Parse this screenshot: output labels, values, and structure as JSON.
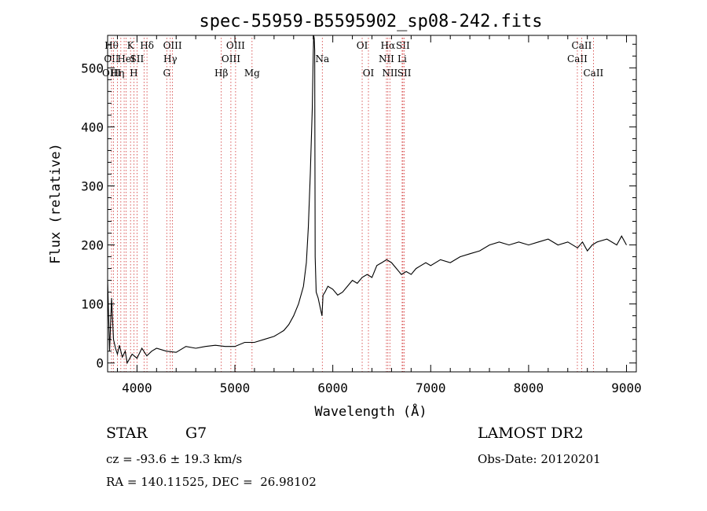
{
  "chart_data": {
    "type": "line",
    "title": "spec-55959-B5595902_sp08-242.fits",
    "xlabel": "Wavelength (Å)",
    "ylabel": "Flux (relative)",
    "xlim": [
      3700,
      9100
    ],
    "ylim": [
      -15,
      555
    ],
    "x_ticks": [
      4000,
      5000,
      6000,
      7000,
      8000,
      9000
    ],
    "y_ticks": [
      0,
      100,
      200,
      300,
      400,
      500
    ],
    "grid": false,
    "series": [
      {
        "x": [
          3700,
          3720,
          3740,
          3760,
          3780,
          3800,
          3820,
          3850,
          3880,
          3900,
          3950,
          4000,
          4050,
          4100,
          4150,
          4200,
          4300,
          4400,
          4500,
          4600,
          4700,
          4800,
          4900,
          5000,
          5100,
          5200,
          5300,
          5400,
          5450,
          5500,
          5550,
          5600,
          5650,
          5700,
          5730,
          5750,
          5770,
          5790,
          5800,
          5805,
          5810,
          5815,
          5820,
          5830,
          5850,
          5870,
          5890,
          5900,
          5920,
          5950,
          6000,
          6050,
          6100,
          6150,
          6200,
          6250,
          6300,
          6350,
          6400,
          6450,
          6500,
          6550,
          6600,
          6650,
          6700,
          6750,
          6800,
          6850,
          6900,
          6950,
          7000,
          7100,
          7200,
          7300,
          7400,
          7500,
          7600,
          7700,
          7800,
          7900,
          8000,
          8100,
          8200,
          8300,
          8400,
          8500,
          8550,
          8600,
          8650,
          8700,
          8800,
          8900,
          8950,
          9000
        ],
        "y": [
          140,
          20,
          110,
          40,
          25,
          15,
          30,
          10,
          20,
          0,
          15,
          8,
          25,
          12,
          20,
          25,
          20,
          18,
          28,
          25,
          28,
          30,
          28,
          28,
          35,
          35,
          40,
          45,
          50,
          55,
          65,
          80,
          100,
          130,
          170,
          230,
          320,
          430,
          520,
          555,
          550,
          530,
          180,
          120,
          110,
          95,
          80,
          115,
          120,
          130,
          125,
          115,
          120,
          130,
          140,
          135,
          145,
          150,
          145,
          165,
          170,
          175,
          170,
          160,
          150,
          155,
          150,
          160,
          165,
          170,
          165,
          175,
          170,
          180,
          185,
          190,
          200,
          205,
          200,
          205,
          200,
          205,
          210,
          200,
          205,
          195,
          205,
          190,
          200,
          205,
          210,
          200,
          215,
          200
        ]
      }
    ],
    "lines": [
      {
        "x": 3740,
        "top": "Hθ",
        "mid": "OII",
        "bot": "OIII"
      },
      {
        "x": 3760,
        "top": "",
        "mid": "",
        "bot": ""
      },
      {
        "x": 3800,
        "top": "",
        "mid": "",
        "bot": "Hη"
      },
      {
        "x": 3835,
        "top": "",
        "mid": "",
        "bot": ""
      },
      {
        "x": 3869,
        "top": "",
        "mid": "",
        "bot": ""
      },
      {
        "x": 3889,
        "top": "",
        "mid": "HeI",
        "bot": ""
      },
      {
        "x": 3934,
        "top": "K",
        "mid": "",
        "bot": ""
      },
      {
        "x": 3968,
        "top": "",
        "mid": "",
        "bot": "H"
      },
      {
        "x": 4000,
        "top": "",
        "mid": "SII",
        "bot": ""
      },
      {
        "x": 4072,
        "top": "",
        "mid": "",
        "bot": ""
      },
      {
        "x": 4102,
        "top": "Hδ",
        "mid": "",
        "bot": ""
      },
      {
        "x": 4304,
        "top": "",
        "mid": "",
        "bot": "G"
      },
      {
        "x": 4340,
        "top": "",
        "mid": "Hγ",
        "bot": ""
      },
      {
        "x": 4363,
        "top": "OIII",
        "mid": "",
        "bot": ""
      },
      {
        "x": 4861,
        "top": "",
        "mid": "",
        "bot": "Hβ"
      },
      {
        "x": 4959,
        "top": "",
        "mid": "OIII",
        "bot": ""
      },
      {
        "x": 5007,
        "top": "OIII",
        "mid": "",
        "bot": ""
      },
      {
        "x": 5175,
        "top": "",
        "mid": "",
        "bot": "Mg"
      },
      {
        "x": 5893,
        "top": "",
        "mid": "Na",
        "bot": ""
      },
      {
        "x": 6300,
        "top": "OI",
        "mid": "",
        "bot": ""
      },
      {
        "x": 6364,
        "top": "",
        "mid": "",
        "bot": "OI"
      },
      {
        "x": 6548,
        "top": "",
        "mid": "NII",
        "bot": ""
      },
      {
        "x": 6563,
        "top": "Hα",
        "mid": "",
        "bot": ""
      },
      {
        "x": 6583,
        "top": "",
        "mid": "",
        "bot": "NII"
      },
      {
        "x": 6708,
        "top": "",
        "mid": "Li",
        "bot": ""
      },
      {
        "x": 6716,
        "top": "SII",
        "mid": "",
        "bot": ""
      },
      {
        "x": 6730,
        "top": "",
        "mid": "",
        "bot": "SII"
      },
      {
        "x": 8498,
        "top": "",
        "mid": "CaII",
        "bot": ""
      },
      {
        "x": 8542,
        "top": "CaII",
        "mid": "",
        "bot": ""
      },
      {
        "x": 8662,
        "top": "",
        "mid": "",
        "bot": "CaII"
      }
    ]
  },
  "info": {
    "class_label": "STAR",
    "subclass": "G7",
    "cz": "cz = -93.6 ± 19.3 km/s",
    "coords": "RA = 140.11525, DEC =  26.98102",
    "survey": "LAMOST DR2",
    "obs_date": "Obs-Date: 20120201"
  }
}
